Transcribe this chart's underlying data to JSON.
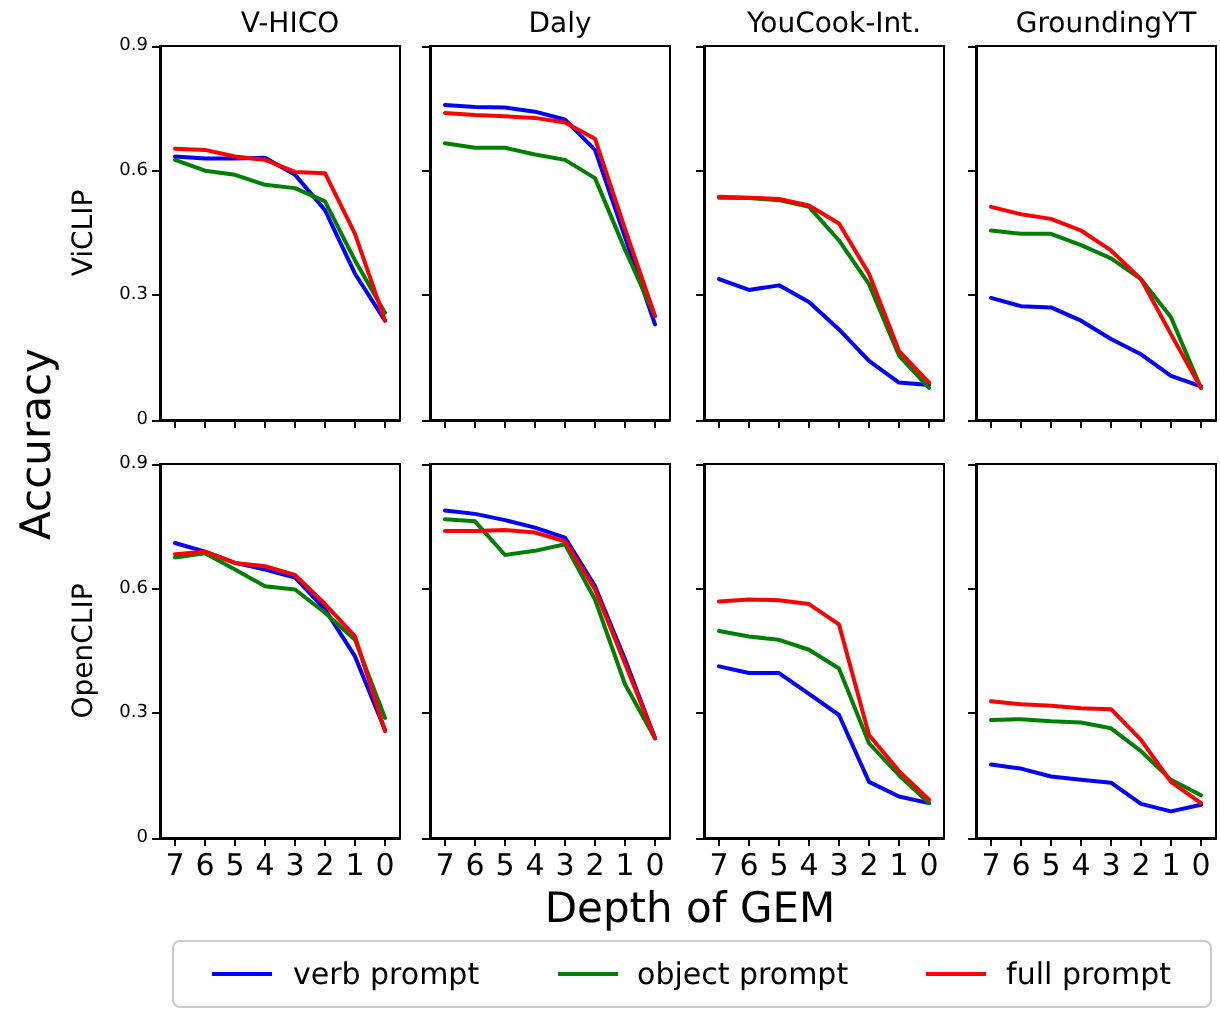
{
  "chart_data": [
    {
      "type": "line",
      "title": "V-HICO",
      "ylabel": "ViCLIP",
      "annotations": [
        "Accuracy",
        "Depth of GEM"
      ],
      "legend": "bottom",
      "tick_labels": "y",
      "categories": [
        "7",
        "6",
        "5",
        "4",
        "3",
        "2",
        "1",
        "0"
      ],
      "ylim": [
        0,
        0.9
      ],
      "yticks": [
        0,
        0.3,
        0.6,
        0.9
      ],
      "series": [
        {
          "name": "verb prompt",
          "color": "#0000ff",
          "values": [
            0.634,
            0.629,
            0.629,
            0.631,
            0.59,
            0.505,
            0.352,
            0.239
          ]
        },
        {
          "name": "object prompt",
          "color": "#008000",
          "values": [
            0.626,
            0.6,
            0.59,
            0.566,
            0.558,
            0.526,
            0.384,
            0.258
          ]
        },
        {
          "name": "full prompt",
          "color": "#ff0000",
          "values": [
            0.653,
            0.65,
            0.634,
            0.626,
            0.597,
            0.594,
            0.448,
            0.239
          ]
        }
      ]
    },
    {
      "type": "line",
      "title": "Daly",
      "tick_labels": false,
      "categories": [
        "7",
        "6",
        "5",
        "4",
        "3",
        "2",
        "1",
        "0"
      ],
      "ylim": [
        0,
        0.9
      ],
      "yticks": [
        0,
        0.3,
        0.6,
        0.9
      ],
      "series": [
        {
          "color": "#0000ff",
          "values": [
            0.758,
            0.753,
            0.752,
            0.742,
            0.723,
            0.65,
            0.44,
            0.23
          ]
        },
        {
          "color": "#008000",
          "values": [
            0.666,
            0.655,
            0.655,
            0.639,
            0.626,
            0.582,
            0.41,
            0.25
          ]
        },
        {
          "color": "#ff0000",
          "values": [
            0.739,
            0.734,
            0.731,
            0.727,
            0.716,
            0.677,
            0.46,
            0.25
          ]
        }
      ]
    },
    {
      "type": "line",
      "title": "YouCook-Int.",
      "tick_labels": false,
      "categories": [
        "7",
        "6",
        "5",
        "4",
        "3",
        "2",
        "1",
        "0"
      ],
      "ylim": [
        0,
        0.9
      ],
      "yticks": [
        0,
        0.3,
        0.6,
        0.9
      ],
      "series": [
        {
          "color": "#0000ff",
          "values": [
            0.339,
            0.313,
            0.324,
            0.284,
            0.218,
            0.142,
            0.09,
            0.084
          ]
        },
        {
          "color": "#008000",
          "values": [
            0.535,
            0.534,
            0.529,
            0.513,
            0.432,
            0.327,
            0.155,
            0.077
          ]
        },
        {
          "color": "#ff0000",
          "values": [
            0.537,
            0.535,
            0.532,
            0.516,
            0.473,
            0.352,
            0.166,
            0.09
          ]
        }
      ]
    },
    {
      "type": "line",
      "title": "GroundingYT",
      "tick_labels": false,
      "categories": [
        "7",
        "6",
        "5",
        "4",
        "3",
        "2",
        "1",
        "0"
      ],
      "ylim": [
        0,
        0.9
      ],
      "yticks": [
        0,
        0.3,
        0.6,
        0.9
      ],
      "series": [
        {
          "color": "#0000ff",
          "values": [
            0.294,
            0.274,
            0.271,
            0.239,
            0.195,
            0.158,
            0.106,
            0.081
          ]
        },
        {
          "color": "#008000",
          "values": [
            0.456,
            0.448,
            0.448,
            0.421,
            0.389,
            0.339,
            0.247,
            0.077
          ]
        },
        {
          "color": "#ff0000",
          "values": [
            0.513,
            0.495,
            0.484,
            0.456,
            0.408,
            0.339,
            0.206,
            0.077
          ]
        }
      ]
    },
    {
      "type": "line",
      "ylabel": "OpenCLIP",
      "categories": [
        "7",
        "6",
        "5",
        "4",
        "3",
        "2",
        "1",
        "0"
      ],
      "ylim": [
        0,
        0.9
      ],
      "yticks": [
        0,
        0.3,
        0.6,
        0.9
      ],
      "series": [
        {
          "color": "#0000ff",
          "values": [
            0.71,
            0.689,
            0.662,
            0.646,
            0.627,
            0.55,
            0.437,
            0.26
          ]
        },
        {
          "color": "#008000",
          "values": [
            0.675,
            0.685,
            0.646,
            0.606,
            0.598,
            0.542,
            0.477,
            0.289
          ]
        },
        {
          "color": "#ff0000",
          "values": [
            0.683,
            0.689,
            0.662,
            0.654,
            0.633,
            0.563,
            0.485,
            0.257
          ]
        }
      ]
    },
    {
      "type": "line",
      "tick_labels": "x",
      "categories": [
        "7",
        "6",
        "5",
        "4",
        "3",
        "2",
        "1",
        "0"
      ],
      "ylim": [
        0,
        0.9
      ],
      "yticks": [
        0,
        0.3,
        0.6,
        0.9
      ],
      "series": [
        {
          "color": "#0000ff",
          "values": [
            0.788,
            0.78,
            0.765,
            0.747,
            0.723,
            0.606,
            0.43,
            0.24
          ]
        },
        {
          "color": "#008000",
          "values": [
            0.767,
            0.762,
            0.681,
            0.691,
            0.707,
            0.574,
            0.37,
            0.24
          ]
        },
        {
          "color": "#ff0000",
          "values": [
            0.739,
            0.739,
            0.741,
            0.735,
            0.714,
            0.598,
            0.42,
            0.24
          ]
        }
      ]
    },
    {
      "type": "line",
      "tick_labels": "x",
      "categories": [
        "7",
        "6",
        "5",
        "4",
        "3",
        "2",
        "1",
        "0"
      ],
      "ylim": [
        0,
        0.9
      ],
      "yticks": [
        0,
        0.3,
        0.6,
        0.9
      ],
      "series": [
        {
          "color": "#0000ff",
          "values": [
            0.413,
            0.397,
            0.397,
            0.347,
            0.296,
            0.135,
            0.1,
            0.084
          ]
        },
        {
          "color": "#008000",
          "values": [
            0.498,
            0.485,
            0.477,
            0.453,
            0.408,
            0.228,
            0.151,
            0.084
          ]
        },
        {
          "color": "#ff0000",
          "values": [
            0.569,
            0.574,
            0.572,
            0.563,
            0.514,
            0.248,
            0.161,
            0.092
          ]
        }
      ]
    },
    {
      "type": "line",
      "tick_labels": "x",
      "categories": [
        "7",
        "6",
        "5",
        "4",
        "3",
        "2",
        "1",
        "0"
      ],
      "ylim": [
        0,
        0.9
      ],
      "yticks": [
        0,
        0.3,
        0.6,
        0.9
      ],
      "series": [
        {
          "color": "#0000ff",
          "values": [
            0.177,
            0.167,
            0.148,
            0.14,
            0.133,
            0.082,
            0.064,
            0.08
          ]
        },
        {
          "color": "#008000",
          "values": [
            0.284,
            0.286,
            0.281,
            0.278,
            0.264,
            0.209,
            0.14,
            0.103
          ]
        },
        {
          "color": "#ff0000",
          "values": [
            0.329,
            0.322,
            0.318,
            0.312,
            0.31,
            0.236,
            0.135,
            0.084
          ]
        }
      ]
    }
  ]
}
